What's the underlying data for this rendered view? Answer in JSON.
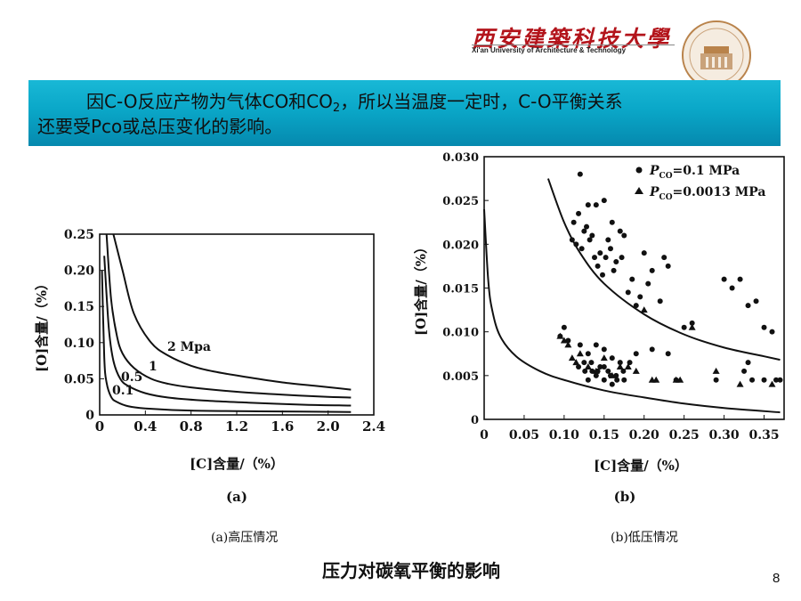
{
  "header": {
    "university_cn": "西安建築科技大學",
    "university_en": "Xi'an University of Architecture & Technology"
  },
  "banner": {
    "line1_a": "因C-O反应产物为气体CO和CO",
    "line1_sub": "2",
    "line1_b": "，所以当温度一定时，C-O平衡关系",
    "line2": "还要受Pco或总压变化的影响。"
  },
  "chart_data": [
    {
      "type": "line",
      "panel_label": "(a)",
      "xlabel": "[C]含量/（%）",
      "ylabel": "[O]含量/（%）",
      "xlim": [
        0,
        2.4
      ],
      "ylim": [
        0,
        0.25
      ],
      "x_ticks": [
        "0",
        "0.4",
        "0.8",
        "1.2",
        "1.6",
        "2.0",
        "2.4"
      ],
      "y_ticks": [
        "0",
        "0.05",
        "0.10",
        "0.15",
        "0.20",
        "0.25"
      ],
      "grid": false,
      "series": [
        {
          "name": "2 Mpa",
          "x": [
            0.12,
            0.2,
            0.3,
            0.45,
            0.6,
            0.8,
            1.0,
            1.3,
            1.6,
            1.9,
            2.2
          ],
          "y": [
            0.25,
            0.2,
            0.14,
            0.1,
            0.082,
            0.068,
            0.06,
            0.052,
            0.045,
            0.04,
            0.035
          ]
        },
        {
          "name": "1",
          "x": [
            0.06,
            0.1,
            0.15,
            0.2,
            0.3,
            0.45,
            0.6,
            0.8,
            1.2,
            1.6,
            2.0,
            2.2
          ],
          "y": [
            0.25,
            0.16,
            0.11,
            0.085,
            0.065,
            0.05,
            0.043,
            0.038,
            0.032,
            0.028,
            0.025,
            0.024
          ]
        },
        {
          "name": "0.5",
          "x": [
            0.04,
            0.08,
            0.12,
            0.18,
            0.25,
            0.4,
            0.6,
            0.9,
            1.3,
            1.8,
            2.2
          ],
          "y": [
            0.22,
            0.12,
            0.075,
            0.05,
            0.04,
            0.03,
            0.024,
            0.02,
            0.017,
            0.014,
            0.013
          ]
        },
        {
          "name": "0.1",
          "x": [
            0.02,
            0.04,
            0.06,
            0.1,
            0.15,
            0.25,
            0.4,
            0.8,
            1.4,
            2.2
          ],
          "y": [
            0.2,
            0.08,
            0.045,
            0.025,
            0.018,
            0.012,
            0.009,
            0.006,
            0.005,
            0.004
          ]
        }
      ]
    },
    {
      "type": "scatter",
      "panel_label": "(b)",
      "xlabel": "[C]含量/（%）",
      "ylabel": "[O]含量/（%）",
      "xlim": [
        0,
        0.375
      ],
      "ylim": [
        0,
        0.03
      ],
      "x_ticks": [
        "0",
        "0.05",
        "0.10",
        "0.15",
        "0.20",
        "0.25",
        "0.30",
        "0.35"
      ],
      "y_ticks": [
        "0",
        "0.005",
        "0.010",
        "0.015",
        "0.020",
        "0.025",
        "0.030"
      ],
      "grid": false,
      "legend": {
        "placement": "top-right",
        "entries": [
          "P_CO=0.1 MPa",
          "P_CO=0.0013 MPa"
        ],
        "sub": "CO",
        "vals": [
          "=0.1 MPa",
          "=0.0013 MPa"
        ]
      },
      "curves": [
        {
          "x": [
            0.08,
            0.1,
            0.12,
            0.15,
            0.2,
            0.25,
            0.3,
            0.35,
            0.37
          ],
          "y": [
            0.0275,
            0.0225,
            0.019,
            0.0155,
            0.012,
            0.0097,
            0.0082,
            0.0072,
            0.0068
          ]
        },
        {
          "x": [
            0.0,
            0.005,
            0.01,
            0.02,
            0.04,
            0.07,
            0.1,
            0.15,
            0.2,
            0.25,
            0.3,
            0.37
          ],
          "y": [
            0.024,
            0.016,
            0.0125,
            0.0095,
            0.0072,
            0.0055,
            0.0045,
            0.0033,
            0.0025,
            0.0018,
            0.0013,
            0.0008
          ]
        }
      ],
      "series": [
        {
          "name": "P_CO=0.1 MPa",
          "marker": "circle",
          "x": [
            0.095,
            0.1,
            0.105,
            0.11,
            0.112,
            0.115,
            0.118,
            0.12,
            0.122,
            0.125,
            0.128,
            0.13,
            0.132,
            0.135,
            0.138,
            0.14,
            0.142,
            0.145,
            0.148,
            0.15,
            0.152,
            0.155,
            0.158,
            0.16,
            0.162,
            0.165,
            0.17,
            0.172,
            0.175,
            0.18,
            0.185,
            0.19,
            0.195,
            0.2,
            0.205,
            0.21,
            0.22,
            0.225,
            0.23,
            0.12,
            0.125,
            0.13,
            0.135,
            0.14,
            0.145,
            0.15,
            0.155,
            0.16,
            0.165,
            0.17,
            0.175,
            0.13,
            0.14,
            0.15,
            0.16,
            0.118,
            0.126,
            0.134,
            0.142,
            0.15,
            0.158,
            0.166,
            0.174,
            0.182,
            0.19,
            0.3,
            0.31,
            0.32,
            0.33,
            0.34,
            0.35,
            0.36,
            0.37,
            0.325,
            0.335,
            0.25,
            0.26,
            0.21,
            0.23,
            0.24,
            0.29,
            0.33,
            0.35,
            0.365
          ],
          "y": [
            0.0095,
            0.0105,
            0.009,
            0.0205,
            0.0225,
            0.02,
            0.0235,
            0.028,
            0.0195,
            0.0215,
            0.022,
            0.0245,
            0.0205,
            0.021,
            0.0185,
            0.0245,
            0.0175,
            0.019,
            0.0165,
            0.025,
            0.0185,
            0.0205,
            0.0195,
            0.0225,
            0.017,
            0.018,
            0.0215,
            0.0185,
            0.021,
            0.0145,
            0.016,
            0.013,
            0.014,
            0.019,
            0.0155,
            0.017,
            0.0135,
            0.0185,
            0.0175,
            0.0085,
            0.0065,
            0.0075,
            0.0055,
            0.0085,
            0.006,
            0.008,
            0.0055,
            0.007,
            0.005,
            0.0065,
            0.0045,
            0.0045,
            0.005,
            0.0045,
            0.004,
            0.006,
            0.0055,
            0.0065,
            0.0055,
            0.006,
            0.005,
            0.0045,
            0.0055,
            0.0065,
            0.0075,
            0.016,
            0.015,
            0.016,
            0.013,
            0.0135,
            0.0105,
            0.01,
            0.0045,
            0.0055,
            0.0045,
            0.0105,
            0.011,
            0.008,
            0.0075,
            0.0045,
            0.0045,
            0.0065,
            0.0045,
            0.0045
          ],
          "note": "approximate"
        },
        {
          "name": "P_CO=0.0013 MPa",
          "marker": "triangle",
          "x": [
            0.095,
            0.1,
            0.105,
            0.11,
            0.115,
            0.12,
            0.13,
            0.14,
            0.15,
            0.16,
            0.17,
            0.18,
            0.19,
            0.2,
            0.21,
            0.215,
            0.24,
            0.245,
            0.26,
            0.29,
            0.32,
            0.36
          ],
          "y": [
            0.0095,
            0.009,
            0.0085,
            0.007,
            0.0065,
            0.0075,
            0.006,
            0.0055,
            0.007,
            0.005,
            0.006,
            0.006,
            0.0055,
            0.0125,
            0.0045,
            0.0045,
            0.0045,
            0.0045,
            0.0105,
            0.0055,
            0.004,
            0.004
          ]
        }
      ]
    }
  ],
  "captions": {
    "a": "(a)高压情况",
    "b": "(b)低压情况"
  },
  "title": "压力对碳氧平衡的影响",
  "page_number": "8"
}
